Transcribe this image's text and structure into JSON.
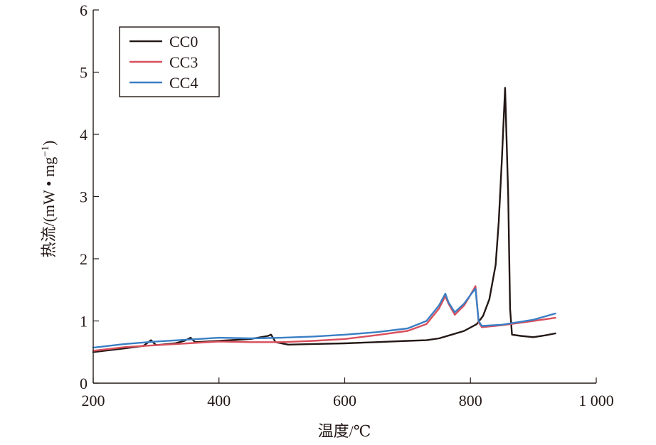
{
  "chart_data": {
    "type": "line",
    "title": "",
    "xlabel": "温度/℃",
    "ylabel": "热流/(mW • mg",
    "ylabel_sup": "−1",
    "ylabel_close": ")",
    "xlim": [
      200,
      1000
    ],
    "ylim": [
      0,
      6
    ],
    "xticks": [
      200,
      400,
      600,
      800,
      1000
    ],
    "xtick_labels": [
      "200",
      "400",
      "600",
      "800",
      "1 000"
    ],
    "yticks": [
      0,
      1,
      2,
      3,
      4,
      5,
      6
    ],
    "ytick_labels": [
      "0",
      "1",
      "2",
      "3",
      "4",
      "5",
      "6"
    ],
    "grid": false,
    "legend_position": "top-left",
    "series": [
      {
        "name": "CC0",
        "color": "#231815",
        "x": [
          200,
          250,
          280,
          292,
          300,
          330,
          345,
          355,
          362,
          400,
          450,
          478,
          483,
          490,
          510,
          550,
          600,
          650,
          700,
          730,
          750,
          770,
          790,
          810,
          820,
          830,
          840,
          845,
          850,
          855,
          860,
          863,
          866,
          880,
          900,
          920,
          935
        ],
        "y": [
          0.5,
          0.56,
          0.6,
          0.69,
          0.61,
          0.64,
          0.68,
          0.73,
          0.66,
          0.68,
          0.71,
          0.76,
          0.78,
          0.66,
          0.62,
          0.63,
          0.64,
          0.66,
          0.68,
          0.69,
          0.72,
          0.78,
          0.84,
          0.95,
          1.08,
          1.35,
          1.9,
          2.6,
          3.6,
          4.75,
          3.0,
          1.2,
          0.78,
          0.76,
          0.74,
          0.77,
          0.8
        ]
      },
      {
        "name": "CC3",
        "color": "#d94f5c",
        "x": [
          200,
          250,
          300,
          350,
          400,
          450,
          500,
          550,
          600,
          650,
          700,
          730,
          750,
          760,
          765,
          775,
          790,
          800,
          808,
          813,
          818,
          850,
          900,
          935
        ],
        "y": [
          0.52,
          0.58,
          0.61,
          0.64,
          0.67,
          0.66,
          0.66,
          0.68,
          0.71,
          0.77,
          0.84,
          0.95,
          1.2,
          1.4,
          1.28,
          1.1,
          1.25,
          1.42,
          1.56,
          0.98,
          0.9,
          0.93,
          1.0,
          1.05
        ]
      },
      {
        "name": "CC4",
        "color": "#3a7fc4",
        "x": [
          200,
          250,
          300,
          350,
          400,
          450,
          500,
          550,
          600,
          650,
          700,
          730,
          750,
          760,
          765,
          775,
          790,
          800,
          808,
          813,
          818,
          850,
          900,
          935
        ],
        "y": [
          0.57,
          0.63,
          0.67,
          0.7,
          0.73,
          0.72,
          0.73,
          0.75,
          0.78,
          0.82,
          0.88,
          1.0,
          1.25,
          1.44,
          1.3,
          1.14,
          1.28,
          1.42,
          1.52,
          1.0,
          0.92,
          0.94,
          1.02,
          1.12
        ]
      }
    ]
  }
}
